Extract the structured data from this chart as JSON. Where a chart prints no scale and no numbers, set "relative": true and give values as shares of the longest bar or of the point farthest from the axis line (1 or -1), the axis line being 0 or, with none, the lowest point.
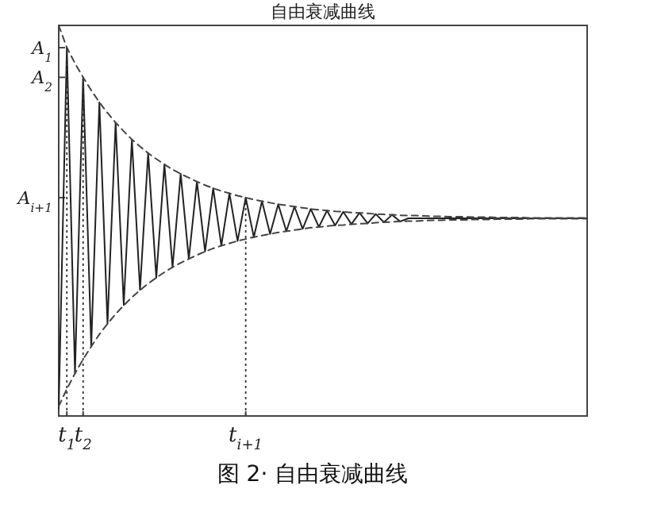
{
  "chart_data": {
    "type": "line",
    "title": "自由衰减曲线",
    "relative": true,
    "categories": [
      null,
      "t$_{1}$",
      null,
      "t$_{2}$",
      null,
      null,
      null,
      null,
      null,
      null,
      null,
      null,
      null,
      null,
      null,
      null,
      null,
      null,
      null,
      null,
      null,
      null,
      null,
      "t$_{i+1}$",
      null,
      null,
      null,
      null,
      null,
      null,
      null,
      null,
      null,
      null,
      null,
      null,
      null,
      null,
      null,
      null,
      null,
      null,
      null,
      null,
      null,
      null,
      null,
      null,
      null,
      null,
      null,
      null,
      null,
      null,
      null,
      null,
      null,
      null,
      null,
      null,
      null,
      null,
      null,
      null,
      null,
      null
    ],
    "series": [
      {
        "color": "#222222",
        "line_style": "solid",
        "values": [
          0.02,
          0.943,
          0.109,
          0.867,
          0.178,
          0.803,
          0.236,
          0.751,
          0.284,
          0.708,
          0.323,
          0.673,
          0.354,
          0.644,
          0.381,
          0.62,
          0.402,
          0.6,
          0.421,
          0.583,
          0.436,
          0.57,
          0.448,
          0.559,
          0.458,
          0.55,
          0.466,
          0.542,
          0.473,
          0.536,
          0.479,
          0.53,
          0.484,
          0.526,
          0.488,
          0.523,
          0.491,
          0.52,
          0.493,
          0.517,
          0.496,
          0.515,
          0.498,
          0.506,
          0.506,
          0.506,
          0.506,
          0.506,
          0.506,
          0.506,
          0.506,
          0.506,
          0.506,
          0.506,
          0.506,
          0.506,
          0.506,
          0.506,
          0.506,
          0.506,
          0.506,
          0.506,
          0.506,
          0.506,
          0.506,
          0.506
        ]
      },
      {
        "color": "#444444",
        "line_style": "dashed",
        "values": [
          1.0,
          0.943,
          0.903,
          0.867,
          0.834,
          0.803,
          0.776,
          0.751,
          0.729,
          0.708,
          0.69,
          0.673,
          0.658,
          0.644,
          0.631,
          0.62,
          0.61,
          0.6,
          0.591,
          0.583,
          0.576,
          0.57,
          0.564,
          0.559,
          0.554,
          0.55,
          0.546,
          0.542,
          0.539,
          0.536,
          0.533,
          0.53,
          0.528,
          0.526,
          0.524,
          0.523,
          0.521,
          0.52,
          0.519,
          0.517,
          0.516,
          0.515,
          0.514,
          0.513,
          0.513,
          0.512,
          0.511,
          0.511,
          0.51,
          0.51,
          0.51,
          0.509,
          0.509,
          0.509,
          0.508,
          0.508,
          0.508,
          0.508,
          0.507,
          0.507,
          0.507,
          0.507,
          0.507,
          0.507,
          0.507,
          0.507
        ]
      },
      {
        "color": "#444444",
        "line_style": "dashed",
        "values": [
          0.025,
          0.069,
          0.109,
          0.145,
          0.178,
          0.209,
          0.236,
          0.261,
          0.283,
          0.304,
          0.322,
          0.339,
          0.354,
          0.368,
          0.381,
          0.392,
          0.402,
          0.412,
          0.421,
          0.429,
          0.436,
          0.442,
          0.448,
          0.453,
          0.458,
          0.462,
          0.466,
          0.47,
          0.473,
          0.476,
          0.479,
          0.482,
          0.484,
          0.486,
          0.488,
          0.489,
          0.491,
          0.492,
          0.493,
          0.495,
          0.496,
          0.497,
          0.498,
          0.499,
          0.499,
          0.5,
          0.501,
          0.501,
          0.502,
          0.502,
          0.502,
          0.503,
          0.503,
          0.503,
          0.504,
          0.504,
          0.504,
          0.504,
          0.505,
          0.505,
          0.505,
          0.505,
          0.505,
          0.505,
          0.505,
          0.505
        ]
      }
    ],
    "ref_lines": [
      {
        "axis": "y",
        "value": 0.943,
        "label": "A$_{1}$",
        "line_style": "dashed"
      },
      {
        "axis": "y",
        "value": 0.867,
        "label": "A$_{2}$",
        "line_style": "dashed"
      },
      {
        "axis": "y",
        "value": 0.559,
        "label": "A$_{i+1}$",
        "line_style": "dashed"
      }
    ],
    "annotations": [
      "图 2· 自由衰减曲线"
    ]
  }
}
